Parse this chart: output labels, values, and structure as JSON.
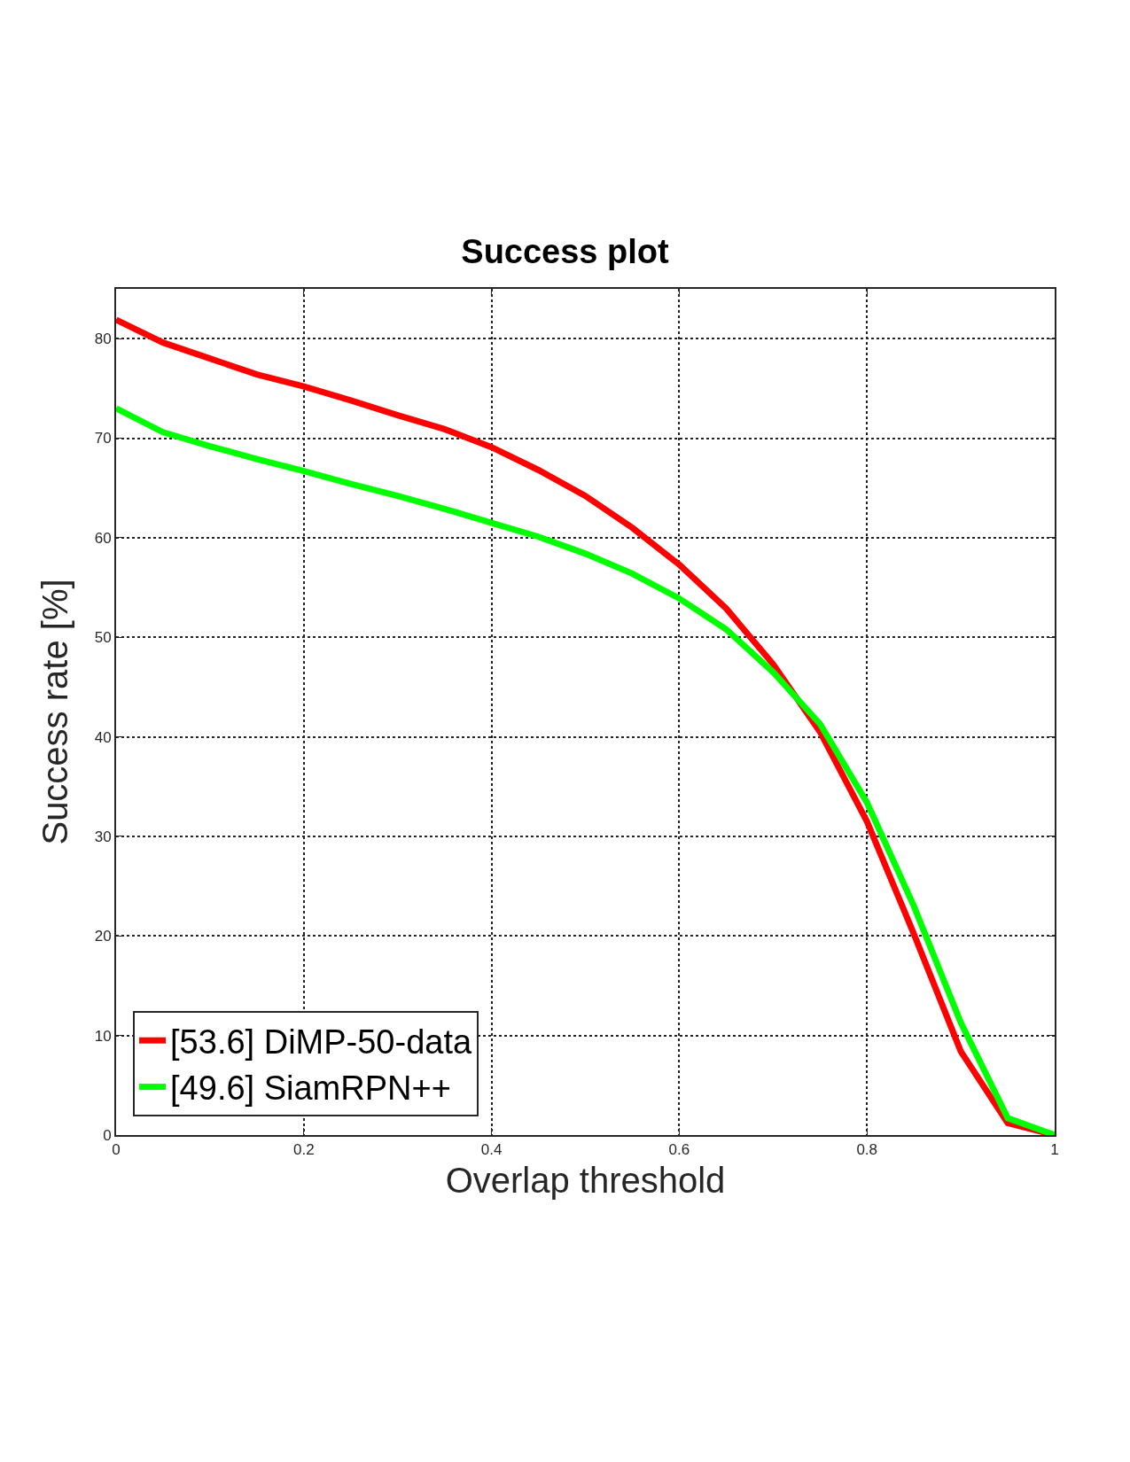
{
  "chart_data": {
    "type": "line",
    "title": "Success plot",
    "xlabel": "Overlap threshold",
    "ylabel": "Success rate [%]",
    "x": [
      0,
      0.05,
      0.1,
      0.15,
      0.2,
      0.25,
      0.3,
      0.35,
      0.4,
      0.45,
      0.5,
      0.55,
      0.6,
      0.65,
      0.7,
      0.75,
      0.8,
      0.85,
      0.9,
      0.95,
      1
    ],
    "series": [
      {
        "name": "[53.6] DiMP-50-data",
        "color": "#ff0000",
        "values": [
          81.9,
          79.6,
          78,
          76.4,
          75.2,
          73.8,
          72.3,
          70.9,
          69.1,
          66.8,
          64.2,
          61,
          57.3,
          52.9,
          47.3,
          40.5,
          31.5,
          20.2,
          8.4,
          1.2,
          0
        ]
      },
      {
        "name": "[49.6] SiamRPN++",
        "color": "#00ff00",
        "values": [
          73,
          70.6,
          69.2,
          67.9,
          66.7,
          65.4,
          64.2,
          62.9,
          61.5,
          60.1,
          58.4,
          56.4,
          53.9,
          50.8,
          46.5,
          41.3,
          33.4,
          23,
          11.3,
          1.7,
          0
        ]
      }
    ],
    "xlim": [
      0,
      1
    ],
    "xticks": [
      0,
      0.2,
      0.4,
      0.6,
      0.8,
      1
    ],
    "ylim": [
      0,
      85
    ],
    "yticks": [
      0,
      10,
      20,
      30,
      40,
      50,
      60,
      70,
      80
    ],
    "grid": true,
    "legend": "bottom left",
    "marker": "none",
    "line_style": "solid"
  }
}
